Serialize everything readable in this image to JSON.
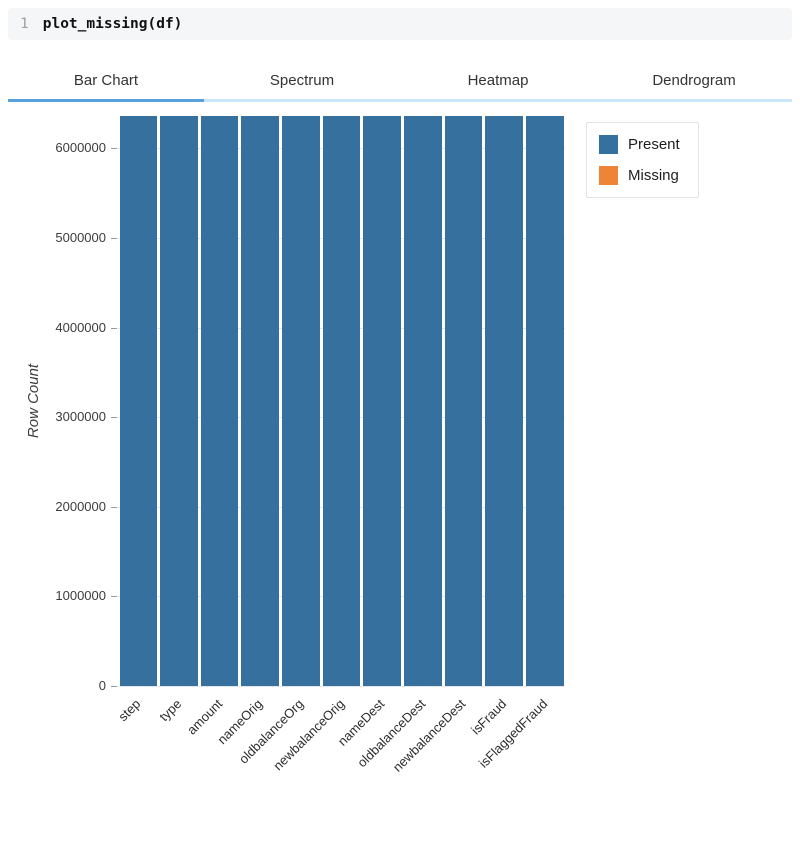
{
  "code_cell": {
    "line_number": "1",
    "code": "plot_missing(df)"
  },
  "tabs": {
    "items": [
      {
        "label": "Bar Chart",
        "active": true
      },
      {
        "label": "Spectrum",
        "active": false
      },
      {
        "label": "Heatmap",
        "active": false
      },
      {
        "label": "Dendrogram",
        "active": false
      }
    ]
  },
  "colors": {
    "present": "#36709F",
    "missing": "#EE8435",
    "active_tab_underline": "#58A1DC",
    "tab_track": "#C9E7FB",
    "code_cell_bg": "#F5F6F7"
  },
  "chart_data": {
    "type": "bar",
    "title": "",
    "xlabel": "",
    "ylabel": "Row Count",
    "grid": true,
    "legend_position": "top-right",
    "categories": [
      "step",
      "type",
      "amount",
      "nameOrig",
      "oldbalanceOrg",
      "newbalanceOrig",
      "nameDest",
      "oldbalanceDest",
      "newbalanceDest",
      "isFraud",
      "isFlaggedFraud"
    ],
    "series": [
      {
        "name": "Present",
        "color": "#36709F",
        "values": [
          6362620,
          6362620,
          6362620,
          6362620,
          6362620,
          6362620,
          6362620,
          6362620,
          6362620,
          6362620,
          6362620
        ]
      },
      {
        "name": "Missing",
        "color": "#EE8435",
        "values": [
          0,
          0,
          0,
          0,
          0,
          0,
          0,
          0,
          0,
          0,
          0
        ]
      }
    ],
    "y_ticks": [
      0,
      1000000,
      2000000,
      3000000,
      4000000,
      5000000,
      6000000
    ],
    "ylim": [
      0,
      6362620
    ]
  }
}
